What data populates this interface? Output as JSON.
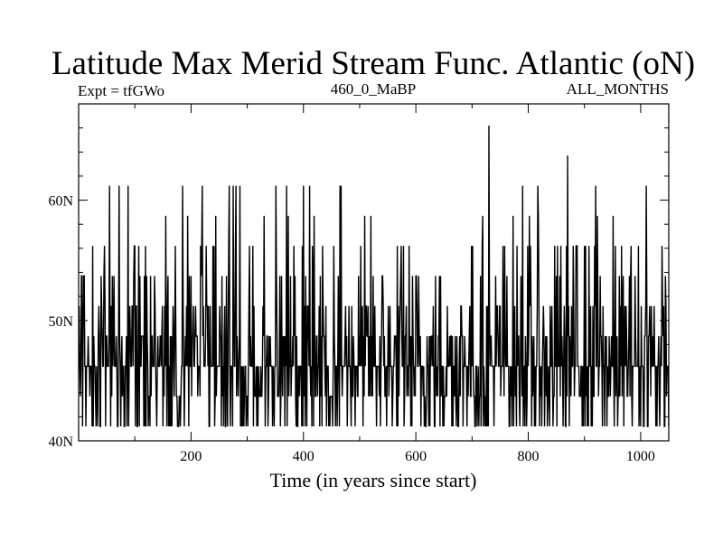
{
  "chart_data": {
    "type": "line",
    "title": "Latitude Max Merid Stream Func. Atlantic (oN)",
    "subtitle_left": "Expt = tfGWo",
    "subtitle_center": "460_0_MaBP",
    "subtitle_right": "ALL_MONTHS",
    "xlabel": "Time (in years since start)",
    "ylabel": "",
    "xlim": [
      0,
      1050
    ],
    "ylim": [
      40,
      68
    ],
    "x_ticks": [
      200,
      400,
      600,
      800,
      1000
    ],
    "y_ticks": [
      {
        "value": 40,
        "label": "40N"
      },
      {
        "value": 50,
        "label": "50N"
      },
      {
        "value": 60,
        "label": "60N"
      }
    ],
    "grid": false,
    "line_color": "#000000",
    "series": [
      {
        "levels": [
          41.2,
          43.7,
          46.2,
          48.7,
          51.2,
          53.7,
          56.2,
          58.7,
          61.2,
          63.7,
          66.2
        ],
        "x_start": 1,
        "x_step": 1,
        "notable_peaks": [
          {
            "x": 730,
            "y": 66.2
          },
          {
            "x": 870,
            "y": 63.7
          },
          {
            "x": 55,
            "y": 61.2
          },
          {
            "x": 185,
            "y": 61.2
          },
          {
            "x": 220,
            "y": 61.2
          },
          {
            "x": 275,
            "y": 61.2
          },
          {
            "x": 280,
            "y": 61.2
          },
          {
            "x": 370,
            "y": 61.2
          },
          {
            "x": 790,
            "y": 61.2
          },
          {
            "x": 920,
            "y": 61.2
          },
          {
            "x": 1010,
            "y": 61.2
          }
        ]
      }
    ]
  }
}
